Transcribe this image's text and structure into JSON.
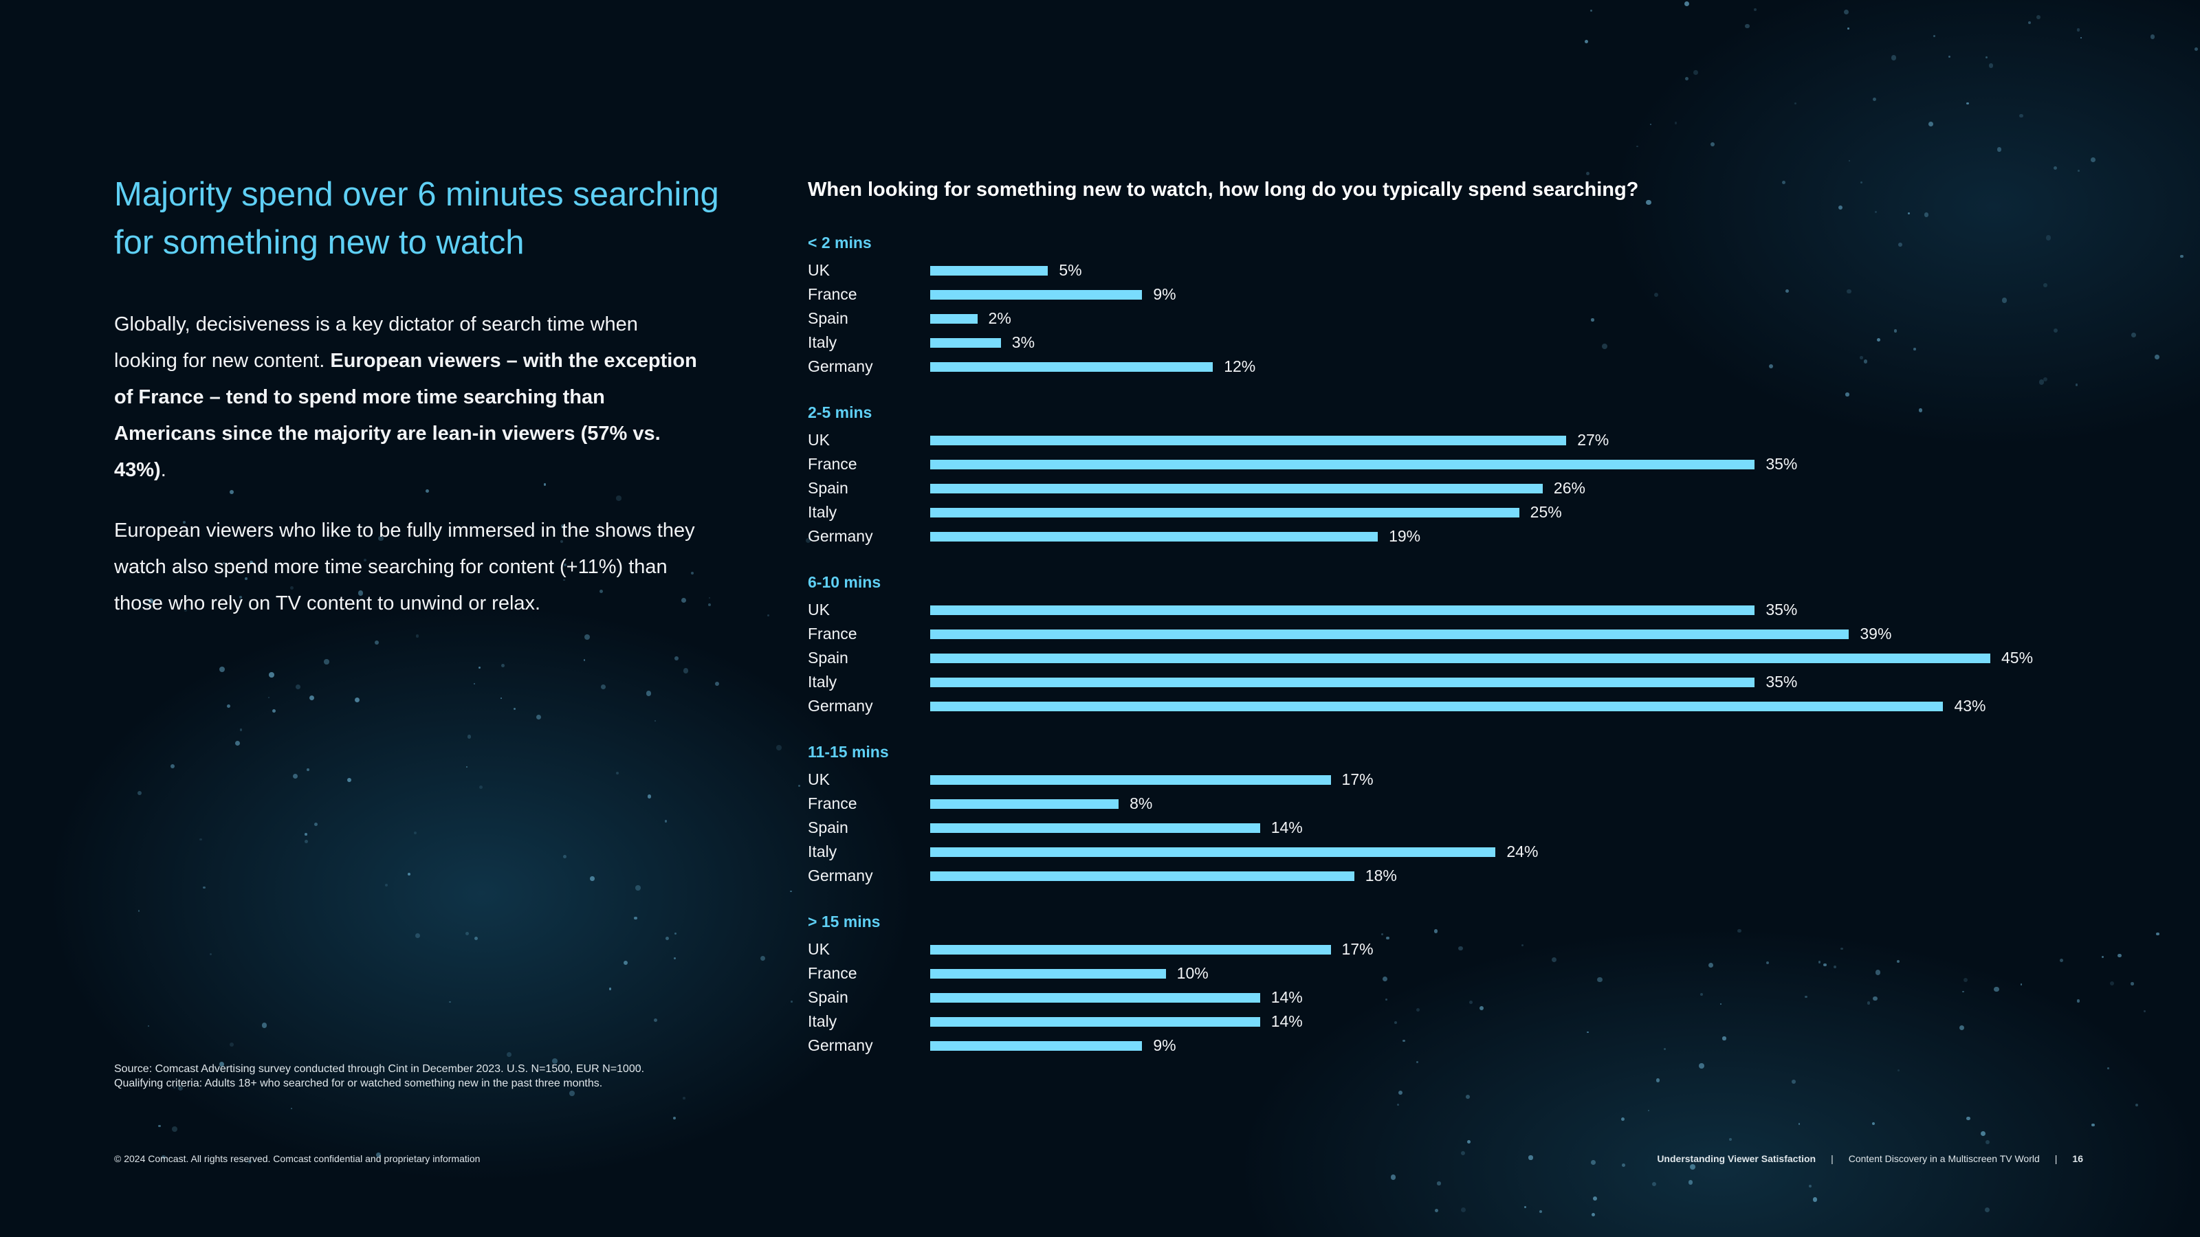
{
  "headline": "Majority spend over 6 minutes searching for something new to watch",
  "paragraph1": {
    "plain": "Globally, decisiveness is a key dictator of search time when looking for new content. ",
    "bold": "European viewers – with the exception of France – tend to spend more time searching than Americans since the majority are lean-in viewers (57% vs. 43%)",
    "end": "."
  },
  "paragraph2": "European viewers who like to be fully immersed in the shows they watch also spend more time searching for content (+11%) than those who rely on TV content to unwind or relax.",
  "source": {
    "line1": "Source: Comcast Advertising survey conducted through Cint in December 2023. U.S. N=1500, EUR N=1000.",
    "line2": "Qualifying criteria: Adults 18+ who searched for or watched something new in the past three months."
  },
  "footer": {
    "copyright": "© 2024 Comcast. All rights reserved. Comcast confidential and proprietary information",
    "section": "Understanding Viewer Satisfaction",
    "sep": "|",
    "report": "Content Discovery in a Multiscreen TV World",
    "page": "16"
  },
  "colors": {
    "accent": "#5fd0f5",
    "bar": "#79dcfd",
    "background": "#030e18"
  },
  "chart_data": {
    "type": "bar",
    "orientation": "horizontal",
    "title": "When looking for something new to watch, how long do you typically spend searching?",
    "unit": "%",
    "xlim": [
      0,
      45
    ],
    "groups": [
      {
        "name": "< 2 mins",
        "categories": [
          "UK",
          "France",
          "Spain",
          "Italy",
          "Germany"
        ],
        "values": [
          5,
          9,
          2,
          3,
          12
        ]
      },
      {
        "name": "2-5 mins",
        "categories": [
          "UK",
          "France",
          "Spain",
          "Italy",
          "Germany"
        ],
        "values": [
          27,
          35,
          26,
          25,
          19
        ]
      },
      {
        "name": "6-10 mins",
        "categories": [
          "UK",
          "France",
          "Spain",
          "Italy",
          "Germany"
        ],
        "values": [
          35,
          39,
          45,
          35,
          43
        ]
      },
      {
        "name": "11-15 mins",
        "categories": [
          "UK",
          "France",
          "Spain",
          "Italy",
          "Germany"
        ],
        "values": [
          17,
          8,
          14,
          24,
          18
        ]
      },
      {
        "name": "> 15 mins",
        "categories": [
          "UK",
          "France",
          "Spain",
          "Italy",
          "Germany"
        ],
        "values": [
          17,
          10,
          14,
          14,
          9
        ]
      }
    ]
  }
}
